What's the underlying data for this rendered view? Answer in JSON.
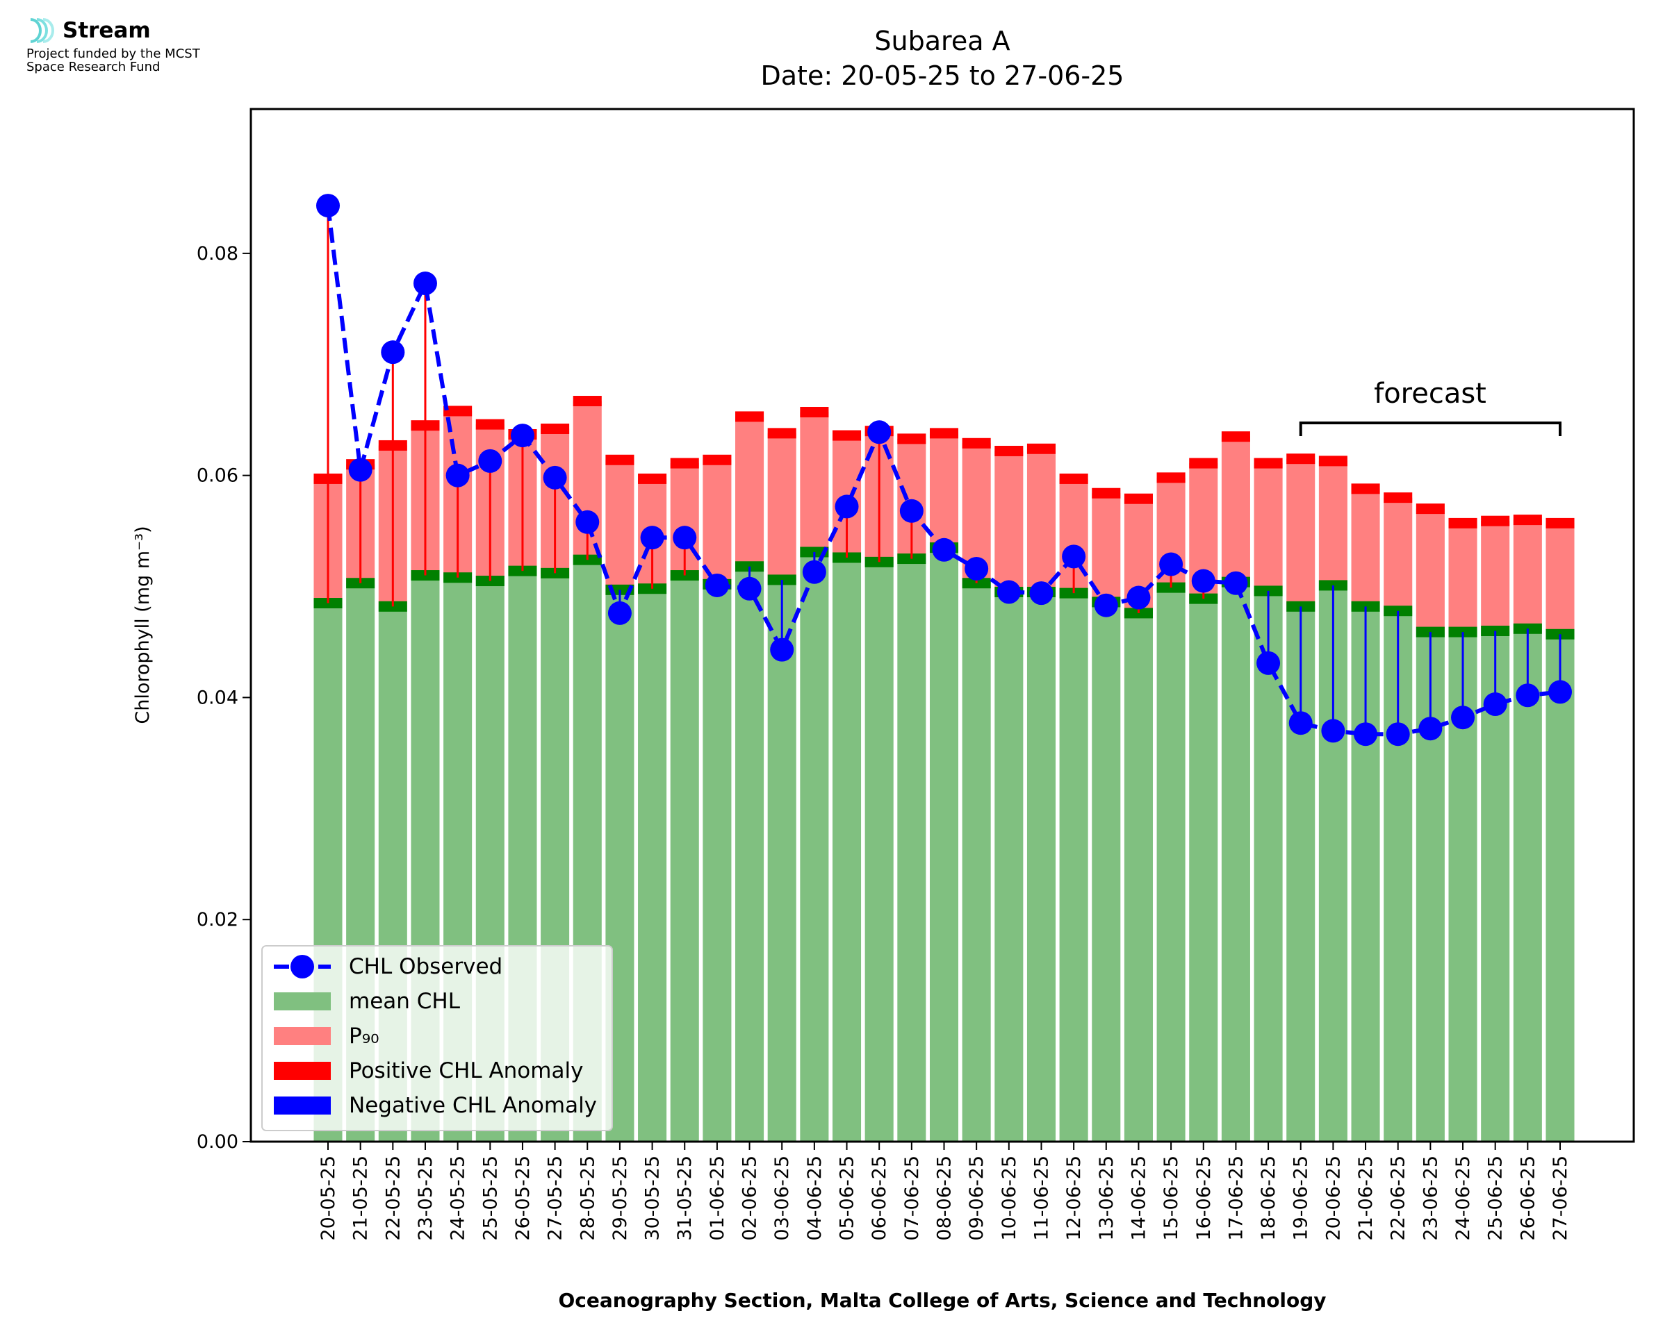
{
  "logo": {
    "name": "Stream",
    "funding": "Project funded by the MCST\nSpace Research Fund"
  },
  "chart_data": {
    "type": "bar",
    "title": "Subarea A",
    "subtitle": "Date: 20-05-25 to 27-06-25",
    "xlabel": "Oceanography Section, Malta College of Arts, Science and Technology",
    "ylabel": "Chlorophyll (mg m⁻³)",
    "ylim": [
      0,
      0.093
    ],
    "yticks": [
      0.0,
      0.02,
      0.04,
      0.06,
      0.08
    ],
    "ytick_labels": [
      "0.00",
      "0.02",
      "0.04",
      "0.06",
      "0.08"
    ],
    "grid": false,
    "legend_position": "lower-left",
    "annotation": "forecast",
    "forecast_range": [
      "19-06-25",
      "27-06-25"
    ],
    "categories": [
      "20-05-25",
      "21-05-25",
      "22-05-25",
      "23-05-25",
      "24-05-25",
      "25-05-25",
      "26-05-25",
      "27-05-25",
      "28-05-25",
      "29-05-25",
      "30-05-25",
      "31-05-25",
      "01-06-25",
      "02-06-25",
      "03-06-25",
      "04-06-25",
      "05-06-25",
      "06-06-25",
      "07-06-25",
      "08-06-25",
      "09-06-25",
      "10-06-25",
      "11-06-25",
      "12-06-25",
      "13-06-25",
      "14-06-25",
      "15-06-25",
      "16-06-25",
      "17-06-25",
      "18-06-25",
      "19-06-25",
      "20-06-25",
      "21-06-25",
      "22-06-25",
      "23-06-25",
      "24-06-25",
      "25-06-25",
      "26-06-25",
      "27-06-25"
    ],
    "series": [
      {
        "name": "CHL Observed",
        "color": "#0000ff",
        "values": [
          0.0843,
          0.0605,
          0.0711,
          0.0773,
          0.06,
          0.0613,
          0.0636,
          0.0598,
          0.0558,
          0.0476,
          0.0544,
          0.0544,
          0.0501,
          0.0498,
          0.0443,
          0.0513,
          0.0572,
          0.0639,
          0.0568,
          0.0533,
          0.0516,
          0.0495,
          0.0494,
          0.0527,
          0.0483,
          0.049,
          0.052,
          0.0505,
          0.0503,
          0.0431,
          0.0377,
          0.037,
          0.0367,
          0.0367,
          0.0372,
          0.0382,
          0.0394,
          0.0402,
          0.0405
        ]
      },
      {
        "name": "mean CHL",
        "color": "#80c080",
        "values": [
          0.0485,
          0.0503,
          0.0482,
          0.051,
          0.0508,
          0.0505,
          0.0514,
          0.0512,
          0.0524,
          0.0497,
          0.0498,
          0.051,
          0.0502,
          0.0518,
          0.0506,
          0.0531,
          0.0526,
          0.0522,
          0.0525,
          0.0535,
          0.0503,
          0.0495,
          0.0495,
          0.0494,
          0.0486,
          0.0476,
          0.0499,
          0.0489,
          0.0504,
          0.0496,
          0.0482,
          0.0501,
          0.0482,
          0.0478,
          0.0459,
          0.0459,
          0.046,
          0.0462,
          0.0457
        ]
      },
      {
        "name": "P₉₀",
        "color": "#ff8080",
        "values": [
          0.0597,
          0.061,
          0.0627,
          0.0645,
          0.0658,
          0.0646,
          0.0637,
          0.0642,
          0.0667,
          0.0614,
          0.0597,
          0.0611,
          0.0614,
          0.0653,
          0.0638,
          0.0657,
          0.0636,
          0.064,
          0.0633,
          0.0638,
          0.0629,
          0.0622,
          0.0624,
          0.0597,
          0.0584,
          0.0579,
          0.0598,
          0.0611,
          0.0635,
          0.0611,
          0.0615,
          0.0613,
          0.0588,
          0.058,
          0.057,
          0.0557,
          0.0559,
          0.056,
          0.0557
        ]
      }
    ],
    "legend": [
      {
        "label": "CHL Observed",
        "kind": "line-marker",
        "color": "#0000ff"
      },
      {
        "label": "mean CHL",
        "kind": "patch",
        "color": "#80c080"
      },
      {
        "label": "P₉₀",
        "kind": "patch",
        "color": "#ff8080"
      },
      {
        "label": "Positive CHL Anomaly",
        "kind": "patch",
        "color": "#ff0000"
      },
      {
        "label": "Negative CHL Anomaly",
        "kind": "patch",
        "color": "#0000ff"
      }
    ],
    "colors": {
      "positive_anomaly": "#ff0000",
      "negative_anomaly": "#0000ff",
      "mean_cap": "#008000",
      "p90_cap": "#ff0000",
      "observed": "#0000ff"
    }
  }
}
